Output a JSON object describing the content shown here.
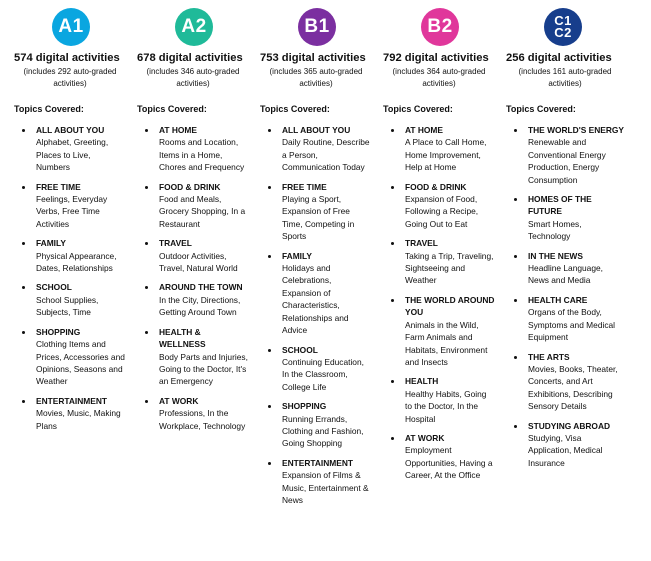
{
  "levels": [
    {
      "badge": "A1",
      "color": "#0aa6e0",
      "count": "574 digital activities",
      "sub": "(includes 292 auto-graded\nactivities)",
      "topics_heading": "Topics Covered:",
      "topics": [
        {
          "title": "ALL ABOUT YOU",
          "desc": "Alphabet, Greeting, Places to Live, Numbers"
        },
        {
          "title": "FREE TIME",
          "desc": "Feelings, Everyday Verbs, Free Time Activities"
        },
        {
          "title": "FAMILY",
          "desc": "Physical Appearance, Dates, Relationships"
        },
        {
          "title": "SCHOOL",
          "desc": "School Supplies, Subjects, Time"
        },
        {
          "title": "SHOPPING",
          "desc": "Clothing Items and Prices, Accessories and Opinions, Seasons and Weather"
        },
        {
          "title": "ENTERTAINMENT",
          "desc": "Movies, Music, Making Plans"
        }
      ]
    },
    {
      "badge": "A2",
      "color": "#1fba99",
      "count": "678 digital activities",
      "sub": "(includes 346 auto-graded\nactivities)",
      "topics_heading": "Topics Covered:",
      "topics": [
        {
          "title": "AT HOME",
          "desc": "Rooms and Location, Items in a Home, Chores and Frequency"
        },
        {
          "title": "FOOD & DRINK",
          "desc": "Food and Meals, Grocery Shopping, In a Restaurant"
        },
        {
          "title": "TRAVEL",
          "desc": "Outdoor Activities, Travel, Natural World"
        },
        {
          "title": "AROUND THE TOWN",
          "desc": "In the City, Directions, Getting Around Town"
        },
        {
          "title": "HEALTH & WELLNESS",
          "desc": "Body Parts and Injuries, Going to the Doctor, It's an Emergency"
        },
        {
          "title": "AT WORK",
          "desc": "Professions, In the Workplace, Technology"
        }
      ]
    },
    {
      "badge": "B1",
      "color": "#7b2fa0",
      "count": "753 digital activities",
      "sub": "(includes 365 auto-graded\nactivities)",
      "topics_heading": "Topics Covered:",
      "topics": [
        {
          "title": "ALL ABOUT YOU",
          "desc": "Daily Routine, Describe a Person, Communication Today"
        },
        {
          "title": "FREE TIME",
          "desc": "Playing a Sport, Expansion of Free Time, Competing in Sports"
        },
        {
          "title": "FAMILY",
          "desc": "Holidays and Celebrations, Expansion of Characteristics, Relationships and Advice"
        },
        {
          "title": "SCHOOL",
          "desc": "Continuing Education, In the Classroom, College Life"
        },
        {
          "title": "SHOPPING",
          "desc": "Running Errands, Clothing and Fashion, Going Shopping"
        },
        {
          "title": "ENTERTAINMENT",
          "desc": "Expansion of Films & Music, Entertainment & News"
        }
      ]
    },
    {
      "badge": "B2",
      "color": "#e0379b",
      "count": "792 digital activities",
      "sub": "(includes 364 auto-graded\nactivities)",
      "topics_heading": "Topics Covered:",
      "topics": [
        {
          "title": "AT HOME",
          "desc": "A Place to Call Home, Home Improvement, Help at Home"
        },
        {
          "title": "FOOD & DRINK",
          "desc": "Expansion of Food, Following a Recipe, Going Out to Eat"
        },
        {
          "title": "TRAVEL",
          "desc": "Taking a Trip, Traveling, Sightseeing and Weather"
        },
        {
          "title": "THE WORLD AROUND YOU",
          "desc": "Animals in the Wild, Farm Animals and Habitats, Environment and Insects"
        },
        {
          "title": "HEALTH",
          "desc": "Healthy Habits, Going to the Doctor, In the Hospital"
        },
        {
          "title": "AT WORK",
          "desc": "Employment Opportunities, Having a Career, At the Office"
        }
      ]
    },
    {
      "badge": "C1\nC2",
      "color": "#173e8c",
      "count": "256 digital activities",
      "sub": "(includes 161 auto-graded\nactivities)",
      "topics_heading": "Topics Covered:",
      "topics": [
        {
          "title": "THE WORLD'S ENERGY",
          "desc": "Renewable and Conventional Energy Production, Energy Consumption"
        },
        {
          "title": "HOMES OF THE FUTURE",
          "desc": "Smart Homes, Technology"
        },
        {
          "title": "IN THE NEWS",
          "desc": "Headline Language, News and Media"
        },
        {
          "title": "HEALTH CARE",
          "desc": "Organs of the Body, Symptoms and Medical Equipment"
        },
        {
          "title": "THE ARTS",
          "desc": "Movies, Books, Theater, Concerts, and Art Exhibitions, Describing Sensory Details"
        },
        {
          "title": "STUDYING ABROAD",
          "desc": "Studying, Visa Application, Medical Insurance"
        }
      ]
    }
  ]
}
